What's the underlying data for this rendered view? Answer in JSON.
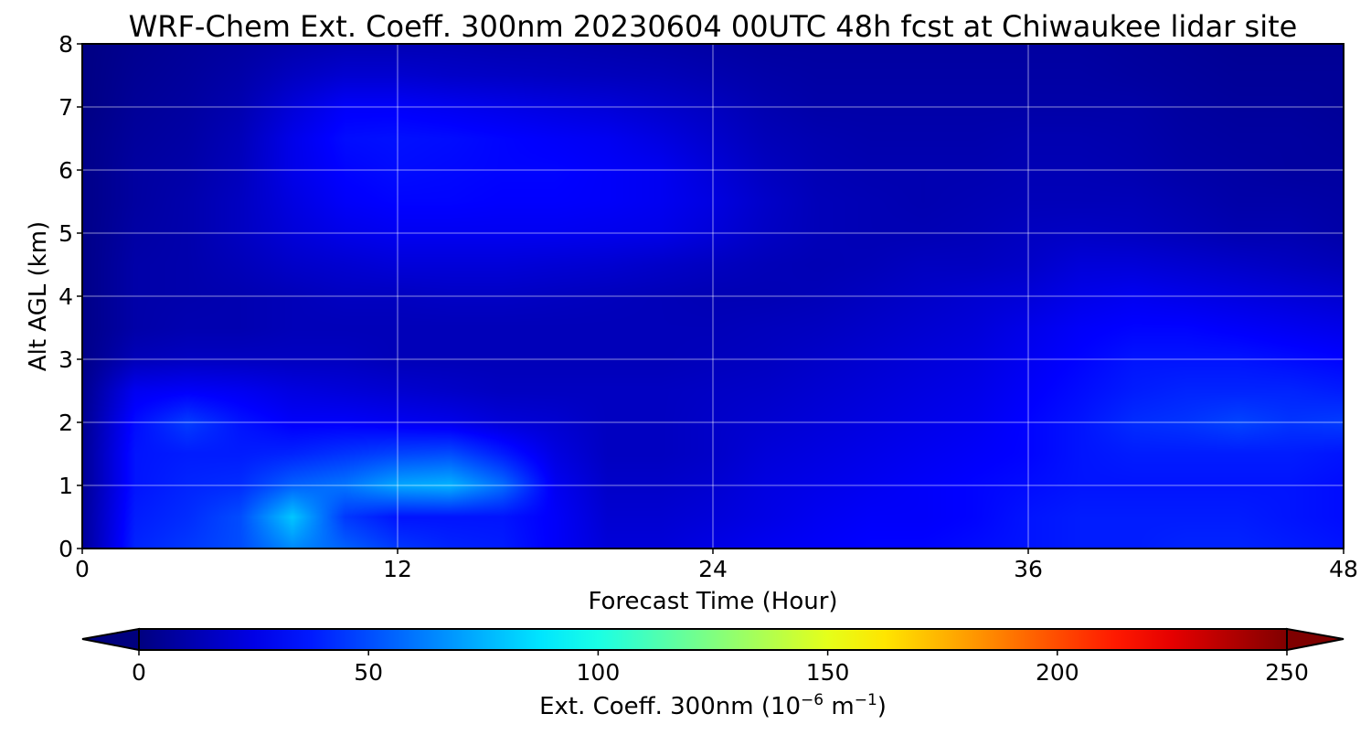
{
  "chart_data": {
    "type": "heatmap",
    "title": "WRF-Chem Ext. Coeff. 300nm  20230604 00UTC 48h fcst at Chiwaukee lidar site",
    "xlabel": "Forecast Time (Hour)",
    "ylabel": "Alt AGL (km)",
    "xlim": [
      0,
      48
    ],
    "ylim": [
      0,
      8
    ],
    "x_ticks": [
      0,
      12,
      24,
      36,
      48
    ],
    "y_ticks": [
      0,
      1,
      2,
      3,
      4,
      5,
      6,
      7,
      8
    ],
    "grid": true,
    "colormap": "jet",
    "colorbar": {
      "label": "Ext. Coeff. 300nm  (10",
      "label_exp1": "−6",
      "label_mid": " m",
      "label_exp2": "−1",
      "label_end": ")",
      "range": [
        0,
        250
      ],
      "ticks": [
        0,
        50,
        100,
        150,
        200,
        250
      ],
      "extend": "both",
      "orientation": "horizontal",
      "placement": "bottom"
    },
    "times": [
      0,
      2,
      4,
      6,
      8,
      10,
      12,
      14,
      16,
      18,
      20,
      22,
      24,
      26,
      28,
      30,
      32,
      34,
      36,
      38,
      40,
      42,
      44,
      46,
      48
    ],
    "altitudes": [
      0,
      0.5,
      1,
      1.5,
      2,
      2.5,
      3,
      3.5,
      4,
      4.5,
      5,
      5.5,
      6,
      6.5,
      7,
      7.5,
      8
    ],
    "values": [
      [
        6,
        40,
        45,
        50,
        65,
        55,
        45,
        40,
        38,
        30,
        22,
        22,
        25,
        28,
        30,
        32,
        32,
        34,
        36,
        38,
        38,
        40,
        40,
        38,
        36
      ],
      [
        6,
        38,
        42,
        50,
        80,
        45,
        36,
        36,
        36,
        30,
        20,
        20,
        22,
        25,
        28,
        30,
        30,
        32,
        36,
        38,
        38,
        38,
        38,
        36,
        34
      ],
      [
        5,
        36,
        40,
        42,
        55,
        60,
        72,
        75,
        58,
        28,
        18,
        18,
        20,
        24,
        26,
        28,
        30,
        32,
        34,
        36,
        36,
        36,
        36,
        36,
        34
      ],
      [
        5,
        36,
        38,
        38,
        40,
        44,
        48,
        50,
        38,
        24,
        16,
        16,
        18,
        22,
        24,
        26,
        28,
        30,
        32,
        36,
        38,
        38,
        38,
        38,
        36
      ],
      [
        4,
        34,
        46,
        36,
        30,
        30,
        28,
        26,
        22,
        20,
        16,
        16,
        18,
        20,
        22,
        24,
        26,
        28,
        32,
        36,
        42,
        44,
        48,
        44,
        46
      ],
      [
        3,
        28,
        30,
        28,
        24,
        22,
        20,
        18,
        16,
        16,
        16,
        16,
        17,
        18,
        20,
        22,
        24,
        26,
        30,
        34,
        38,
        40,
        40,
        40,
        38
      ],
      [
        2,
        14,
        16,
        16,
        16,
        16,
        14,
        14,
        14,
        14,
        14,
        14,
        15,
        16,
        18,
        20,
        22,
        24,
        28,
        32,
        36,
        36,
        36,
        34,
        32
      ],
      [
        2,
        10,
        12,
        12,
        14,
        14,
        14,
        14,
        14,
        14,
        14,
        14,
        14,
        15,
        16,
        18,
        20,
        22,
        26,
        30,
        32,
        32,
        30,
        28,
        26
      ],
      [
        2,
        10,
        11,
        12,
        14,
        16,
        16,
        17,
        17,
        16,
        15,
        14,
        13,
        13,
        14,
        16,
        18,
        20,
        22,
        26,
        28,
        26,
        24,
        22,
        20
      ],
      [
        2,
        10,
        11,
        14,
        18,
        20,
        22,
        22,
        22,
        21,
        20,
        18,
        16,
        14,
        13,
        14,
        16,
        16,
        18,
        22,
        22,
        20,
        18,
        16,
        14
      ],
      [
        2,
        9,
        11,
        16,
        22,
        26,
        28,
        28,
        28,
        28,
        27,
        26,
        22,
        17,
        14,
        13,
        13,
        14,
        16,
        17,
        16,
        14,
        12,
        12,
        10
      ],
      [
        2,
        8,
        11,
        16,
        24,
        30,
        32,
        32,
        31,
        31,
        30,
        28,
        24,
        18,
        14,
        13,
        12,
        13,
        14,
        14,
        14,
        12,
        10,
        10,
        9
      ],
      [
        2,
        8,
        10,
        15,
        26,
        32,
        34,
        33,
        32,
        32,
        30,
        28,
        22,
        16,
        13,
        12,
        12,
        12,
        13,
        13,
        12,
        10,
        9,
        8,
        8
      ],
      [
        2,
        7,
        9,
        14,
        26,
        34,
        35,
        34,
        32,
        30,
        28,
        24,
        19,
        14,
        12,
        11,
        11,
        11,
        12,
        12,
        11,
        9,
        8,
        8,
        7
      ],
      [
        1,
        6,
        8,
        12,
        22,
        30,
        30,
        28,
        26,
        24,
        22,
        19,
        16,
        12,
        10,
        10,
        10,
        10,
        10,
        10,
        10,
        8,
        7,
        7,
        6
      ],
      [
        1,
        5,
        7,
        10,
        16,
        20,
        20,
        18,
        17,
        16,
        15,
        14,
        12,
        10,
        9,
        9,
        9,
        9,
        9,
        9,
        8,
        7,
        6,
        6,
        6
      ],
      [
        1,
        4,
        6,
        8,
        11,
        13,
        13,
        13,
        12,
        12,
        11,
        10,
        9,
        8,
        8,
        8,
        8,
        8,
        8,
        8,
        7,
        6,
        5,
        5,
        5
      ]
    ]
  }
}
